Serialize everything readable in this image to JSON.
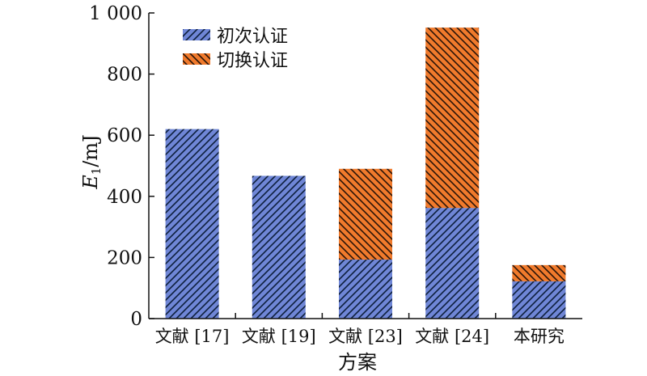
{
  "chart_data": {
    "type": "bar",
    "stacked": true,
    "categories": [
      "文献 [17]",
      "文献 [19]",
      "文献 [23]",
      "文献 [24]",
      "本研究"
    ],
    "series": [
      {
        "name": "初次认证",
        "values": [
          620,
          467,
          193,
          362,
          122
        ],
        "color": "#6f86d6",
        "hatch": "#0d1f3c"
      },
      {
        "name": "切换认证",
        "values": [
          0,
          0,
          297,
          590,
          53
        ],
        "color": "#f07a2c",
        "hatch": "#2a1408"
      }
    ],
    "xlabel": "方案",
    "ylabel_main": "E",
    "ylabel_sub": "1",
    "ylabel_unit": "/mJ",
    "ylim": [
      0,
      1000
    ],
    "yticks": [
      0,
      200,
      400,
      600,
      800,
      1000
    ],
    "ytick_labels": [
      "0",
      "200",
      "400",
      "600",
      "800",
      "1 000"
    ],
    "grid": false,
    "legend_position": "top-left"
  }
}
